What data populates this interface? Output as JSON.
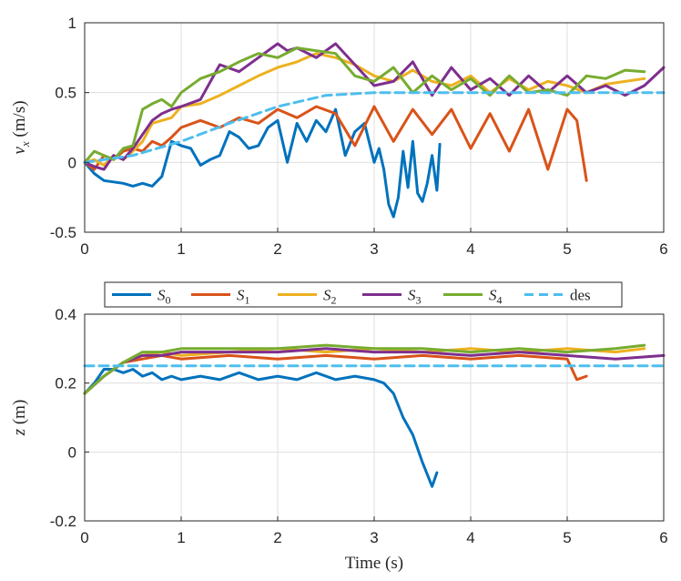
{
  "chart_data": [
    {
      "type": "line",
      "ylabel_var": "v",
      "ylabel_sub": "x",
      "ylabel_unit": " (m/s)",
      "xlim": [
        0,
        6
      ],
      "ylim": [
        -0.5,
        1
      ],
      "xticks": [
        "0",
        "1",
        "2",
        "3",
        "4",
        "5",
        "6"
      ],
      "yticks": [
        "-0.5",
        "0",
        "0.5",
        "1"
      ],
      "grid": true,
      "series": [
        {
          "name": "S0",
          "color": "#0072BD",
          "dashed": false,
          "x": [
            0,
            0.1,
            0.2,
            0.3,
            0.4,
            0.5,
            0.6,
            0.7,
            0.8,
            0.9,
            1.0,
            1.1,
            1.2,
            1.3,
            1.4,
            1.5,
            1.6,
            1.7,
            1.8,
            1.9,
            2.0,
            2.1,
            2.2,
            2.3,
            2.4,
            2.5,
            2.6,
            2.7,
            2.8,
            2.9,
            3.0,
            3.05,
            3.1,
            3.15,
            3.2,
            3.25,
            3.3,
            3.35,
            3.4,
            3.45,
            3.5,
            3.55,
            3.6,
            3.65,
            3.68
          ],
          "y": [
            0,
            -0.08,
            -0.13,
            -0.14,
            -0.15,
            -0.17,
            -0.15,
            -0.17,
            -0.1,
            0.15,
            0.12,
            0.1,
            -0.02,
            0.02,
            0.05,
            0.22,
            0.18,
            0.1,
            0.12,
            0.25,
            0.3,
            0.0,
            0.28,
            0.15,
            0.3,
            0.22,
            0.38,
            0.05,
            0.22,
            0.28,
            0.0,
            0.1,
            -0.05,
            -0.3,
            -0.39,
            -0.25,
            0.08,
            -0.18,
            0.15,
            -0.22,
            -0.28,
            -0.15,
            0.05,
            -0.2,
            0.13
          ]
        },
        {
          "name": "S1",
          "color": "#D95319",
          "dashed": false,
          "x": [
            0,
            0.1,
            0.2,
            0.3,
            0.4,
            0.5,
            0.6,
            0.7,
            0.8,
            0.9,
            1.0,
            1.2,
            1.4,
            1.6,
            1.8,
            2.0,
            2.2,
            2.4,
            2.6,
            2.8,
            3.0,
            3.2,
            3.4,
            3.6,
            3.8,
            4.0,
            4.2,
            4.4,
            4.6,
            4.8,
            5.0,
            5.1,
            5.2
          ],
          "y": [
            0,
            -0.05,
            0.05,
            0.02,
            0.08,
            0.1,
            0.08,
            0.15,
            0.12,
            0.18,
            0.25,
            0.3,
            0.25,
            0.32,
            0.28,
            0.38,
            0.32,
            0.4,
            0.35,
            0.12,
            0.4,
            0.15,
            0.38,
            0.2,
            0.38,
            0.1,
            0.35,
            0.08,
            0.38,
            -0.05,
            0.38,
            0.3,
            -0.13
          ]
        },
        {
          "name": "S2",
          "color": "#EDB120",
          "dashed": false,
          "x": [
            0,
            0.1,
            0.2,
            0.3,
            0.4,
            0.5,
            0.6,
            0.7,
            0.8,
            0.9,
            1.0,
            1.2,
            1.4,
            1.6,
            1.8,
            2.0,
            2.2,
            2.4,
            2.6,
            2.8,
            3.0,
            3.2,
            3.4,
            3.6,
            3.8,
            4.0,
            4.2,
            4.4,
            4.6,
            4.8,
            5.0,
            5.2,
            5.4,
            5.6,
            5.8
          ],
          "y": [
            0,
            0.02,
            -0.02,
            0.05,
            0.02,
            0.08,
            0.15,
            0.28,
            0.3,
            0.32,
            0.4,
            0.42,
            0.48,
            0.55,
            0.62,
            0.68,
            0.72,
            0.78,
            0.75,
            0.7,
            0.62,
            0.58,
            0.66,
            0.58,
            0.55,
            0.62,
            0.5,
            0.6,
            0.52,
            0.58,
            0.55,
            0.5,
            0.56,
            0.58,
            0.6
          ]
        },
        {
          "name": "S3",
          "color": "#7E2F8E",
          "dashed": false,
          "x": [
            0,
            0.1,
            0.2,
            0.3,
            0.4,
            0.5,
            0.6,
            0.7,
            0.8,
            0.9,
            1.0,
            1.2,
            1.4,
            1.6,
            1.8,
            2.0,
            2.1,
            2.2,
            2.4,
            2.6,
            2.8,
            3.0,
            3.2,
            3.4,
            3.6,
            3.8,
            4.0,
            4.2,
            4.4,
            4.6,
            4.8,
            5.0,
            5.2,
            5.4,
            5.6,
            5.8,
            6.0
          ],
          "y": [
            0,
            -0.03,
            -0.05,
            0.05,
            0.02,
            0.1,
            0.2,
            0.3,
            0.35,
            0.38,
            0.4,
            0.45,
            0.7,
            0.65,
            0.75,
            0.85,
            0.8,
            0.82,
            0.75,
            0.85,
            0.7,
            0.55,
            0.58,
            0.72,
            0.48,
            0.68,
            0.52,
            0.6,
            0.48,
            0.62,
            0.5,
            0.62,
            0.5,
            0.55,
            0.48,
            0.55,
            0.68
          ]
        },
        {
          "name": "S4",
          "color": "#77AC30",
          "dashed": false,
          "x": [
            0,
            0.1,
            0.2,
            0.3,
            0.4,
            0.5,
            0.6,
            0.7,
            0.8,
            0.9,
            1.0,
            1.2,
            1.4,
            1.6,
            1.8,
            2.0,
            2.2,
            2.4,
            2.6,
            2.8,
            3.0,
            3.2,
            3.4,
            3.6,
            3.8,
            4.0,
            4.2,
            4.4,
            4.6,
            4.8,
            5.0,
            5.2,
            5.4,
            5.6,
            5.8
          ],
          "y": [
            0,
            0.08,
            0.05,
            0.02,
            0.1,
            0.12,
            0.38,
            0.42,
            0.45,
            0.4,
            0.5,
            0.6,
            0.65,
            0.72,
            0.78,
            0.75,
            0.82,
            0.8,
            0.78,
            0.62,
            0.58,
            0.68,
            0.5,
            0.62,
            0.52,
            0.6,
            0.48,
            0.62,
            0.5,
            0.52,
            0.48,
            0.62,
            0.6,
            0.66,
            0.65
          ]
        },
        {
          "name": "des",
          "color": "#4DBEEE",
          "dashed": true,
          "x": [
            0,
            0.5,
            1.0,
            1.5,
            2.0,
            2.5,
            3.0,
            6.0
          ],
          "y": [
            0,
            0.05,
            0.15,
            0.28,
            0.4,
            0.48,
            0.5,
            0.5
          ]
        }
      ]
    },
    {
      "type": "line",
      "ylabel_var": "z",
      "ylabel_sub": "",
      "ylabel_unit": " (m)",
      "xlabel": "Time (s)",
      "xlim": [
        0,
        6
      ],
      "ylim": [
        -0.2,
        0.4
      ],
      "xticks": [
        "0",
        "1",
        "2",
        "3",
        "4",
        "5",
        "6"
      ],
      "yticks": [
        "-0.2",
        "0",
        "0.2",
        "0.4"
      ],
      "grid": true,
      "legend": {
        "placement": "top-outside",
        "labels": [
          "0",
          "1",
          "2",
          "3",
          "4",
          "des"
        ],
        "script_symbol": "S"
      },
      "series": [
        {
          "name": "S0",
          "color": "#0072BD",
          "dashed": false,
          "x": [
            0,
            0.1,
            0.2,
            0.3,
            0.4,
            0.5,
            0.6,
            0.7,
            0.8,
            0.9,
            1.0,
            1.2,
            1.4,
            1.6,
            1.8,
            2.0,
            2.2,
            2.4,
            2.6,
            2.8,
            3.0,
            3.1,
            3.2,
            3.3,
            3.4,
            3.5,
            3.6,
            3.65
          ],
          "y": [
            0.17,
            0.2,
            0.24,
            0.24,
            0.23,
            0.24,
            0.22,
            0.23,
            0.21,
            0.22,
            0.21,
            0.22,
            0.21,
            0.23,
            0.21,
            0.22,
            0.21,
            0.23,
            0.21,
            0.22,
            0.21,
            0.2,
            0.17,
            0.1,
            0.05,
            -0.03,
            -0.1,
            -0.06
          ]
        },
        {
          "name": "S1",
          "color": "#D95319",
          "dashed": false,
          "x": [
            0,
            0.2,
            0.4,
            0.6,
            0.8,
            1.0,
            1.5,
            2.0,
            2.5,
            3.0,
            3.5,
            4.0,
            4.5,
            5.0,
            5.1,
            5.2
          ],
          "y": [
            0.17,
            0.22,
            0.26,
            0.27,
            0.28,
            0.27,
            0.28,
            0.27,
            0.28,
            0.27,
            0.28,
            0.27,
            0.28,
            0.27,
            0.21,
            0.22
          ]
        },
        {
          "name": "S2",
          "color": "#EDB120",
          "dashed": false,
          "x": [
            0,
            0.2,
            0.4,
            0.6,
            0.8,
            1.0,
            1.5,
            2.0,
            2.5,
            3.0,
            3.5,
            4.0,
            4.5,
            5.0,
            5.5,
            5.8
          ],
          "y": [
            0.17,
            0.22,
            0.26,
            0.28,
            0.29,
            0.28,
            0.29,
            0.3,
            0.29,
            0.3,
            0.29,
            0.3,
            0.29,
            0.3,
            0.29,
            0.3
          ]
        },
        {
          "name": "S3",
          "color": "#7E2F8E",
          "dashed": false,
          "x": [
            0,
            0.2,
            0.4,
            0.6,
            0.8,
            1.0,
            1.5,
            2.0,
            2.5,
            3.0,
            3.5,
            4.0,
            4.5,
            5.0,
            5.5,
            6.0
          ],
          "y": [
            0.17,
            0.22,
            0.26,
            0.28,
            0.28,
            0.29,
            0.29,
            0.29,
            0.3,
            0.29,
            0.29,
            0.28,
            0.29,
            0.28,
            0.27,
            0.28
          ]
        },
        {
          "name": "S4",
          "color": "#77AC30",
          "dashed": false,
          "x": [
            0,
            0.2,
            0.4,
            0.6,
            0.8,
            1.0,
            1.5,
            2.0,
            2.5,
            3.0,
            3.5,
            4.0,
            4.5,
            5.0,
            5.5,
            5.8
          ],
          "y": [
            0.17,
            0.22,
            0.26,
            0.29,
            0.29,
            0.3,
            0.3,
            0.3,
            0.31,
            0.3,
            0.3,
            0.29,
            0.3,
            0.29,
            0.3,
            0.31
          ]
        },
        {
          "name": "des",
          "color": "#4DBEEE",
          "dashed": true,
          "x": [
            0,
            6
          ],
          "y": [
            0.25,
            0.25
          ]
        }
      ]
    }
  ]
}
